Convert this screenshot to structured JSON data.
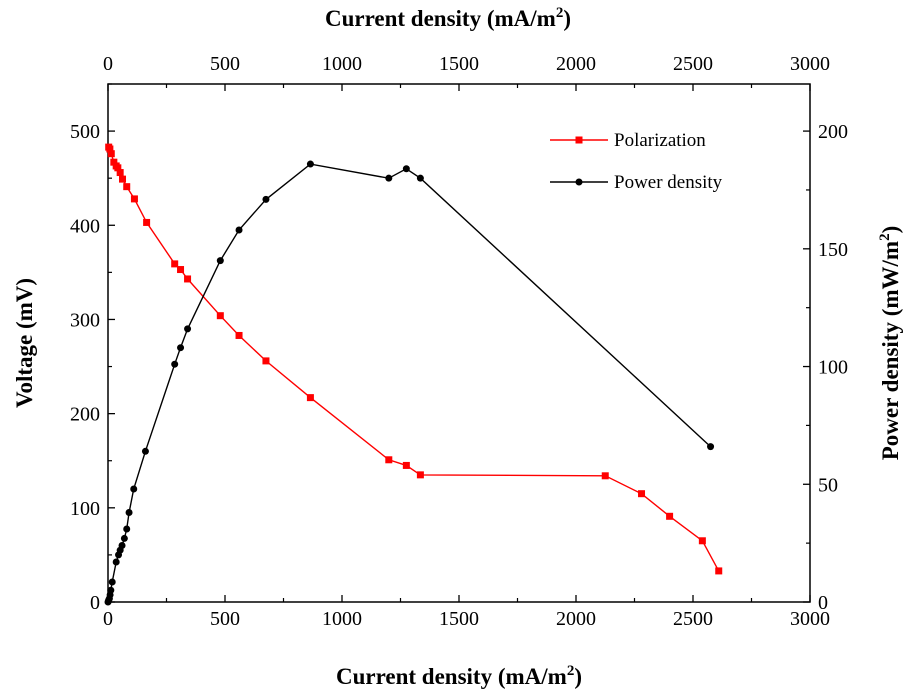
{
  "chart_data": {
    "type": "line",
    "x_bottom": {
      "label": "Current density (mA/m",
      "sup": "2",
      "suffix": ")",
      "range": [
        0,
        3000
      ],
      "ticks": [
        0,
        500,
        1000,
        1500,
        2000,
        2500,
        3000
      ]
    },
    "x_top": {
      "label": "Current density (mA/m",
      "sup": "2",
      "suffix": ")",
      "range": [
        0,
        3000
      ],
      "ticks": [
        0,
        500,
        1000,
        1500,
        2000,
        2500,
        3000
      ]
    },
    "y_left": {
      "label": "Voltage (mV)",
      "range": [
        0,
        550
      ],
      "ticks": [
        0,
        100,
        200,
        300,
        400,
        500
      ]
    },
    "y_right": {
      "label": "Power density (mW/m",
      "sup": "2",
      "suffix": ")",
      "range": [
        0,
        220
      ],
      "ticks": [
        0,
        50,
        100,
        150,
        200
      ]
    },
    "legend_position": "top-right",
    "grid": false,
    "series": [
      {
        "name": "Polarization",
        "axis": "left",
        "color": "#ff0000",
        "marker": "square",
        "x": [
          3,
          8,
          14,
          25,
          35,
          42,
          52,
          62,
          80,
          113,
          165,
          285,
          310,
          340,
          480,
          560,
          675,
          865,
          1200,
          1275,
          1335,
          2125,
          2280,
          2400,
          2540,
          2610
        ],
        "y": [
          483,
          481,
          476,
          467,
          463,
          461,
          456,
          449,
          441,
          428,
          403,
          359,
          353,
          343,
          304,
          283,
          256,
          217,
          151,
          145,
          135,
          134,
          115,
          91,
          65,
          33
        ]
      },
      {
        "name": "Power density",
        "axis": "right",
        "color": "#000000",
        "marker": "circle",
        "x": [
          0,
          3,
          6,
          9,
          12,
          18,
          35,
          45,
          52,
          60,
          70,
          80,
          90,
          110,
          160,
          285,
          310,
          340,
          480,
          560,
          675,
          865,
          1200,
          1275,
          1335,
          2575
        ],
        "y": [
          0,
          0.8,
          1.5,
          3,
          5,
          8.5,
          17,
          20,
          22,
          24,
          27,
          31,
          38,
          48,
          64,
          101,
          108,
          116,
          145,
          158,
          171,
          186,
          180,
          184,
          180,
          66
        ]
      }
    ]
  }
}
